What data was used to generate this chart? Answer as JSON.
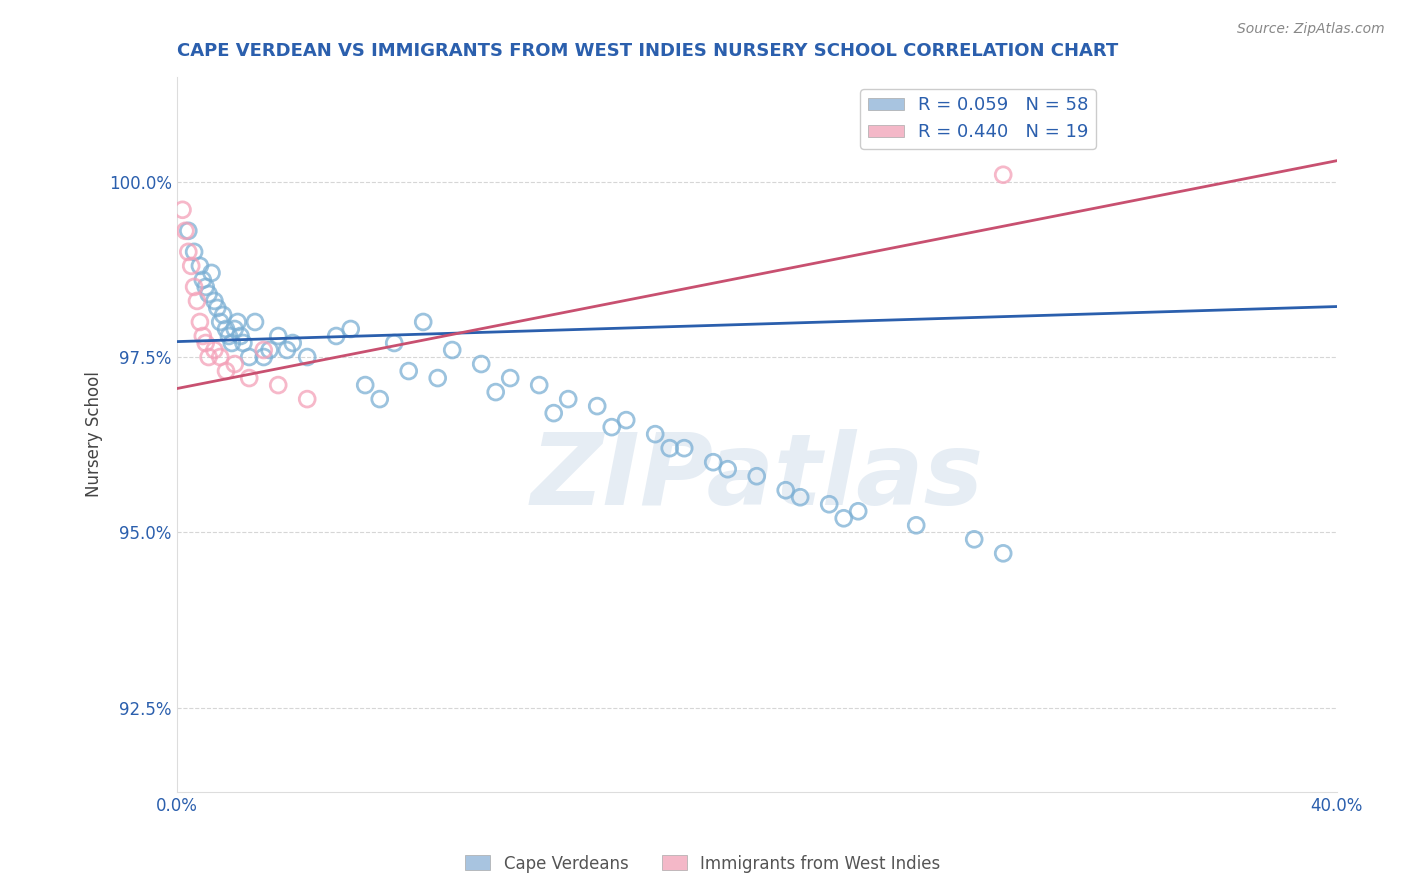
{
  "title": "CAPE VERDEAN VS IMMIGRANTS FROM WEST INDIES NURSERY SCHOOL CORRELATION CHART",
  "source": "Source: ZipAtlas.com",
  "ylabel": "Nursery School",
  "xlim": [
    0.0,
    40.0
  ],
  "ylim": [
    91.3,
    101.5
  ],
  "yticks": [
    92.5,
    95.0,
    97.5,
    100.0
  ],
  "xticks": [
    0.0,
    10.0,
    20.0,
    30.0,
    40.0
  ],
  "xtick_labels": [
    "0.0%",
    "",
    "",
    "",
    "40.0%"
  ],
  "ytick_labels": [
    "92.5%",
    "95.0%",
    "97.5%",
    "100.0%"
  ],
  "legend_blue_label": "R = 0.059   N = 58",
  "legend_pink_label": "R = 0.440   N = 19",
  "legend_blue_color": "#a8c4e0",
  "legend_pink_color": "#f4b8c8",
  "scatter_blue_x": [
    0.4,
    0.6,
    0.8,
    0.9,
    1.0,
    1.1,
    1.2,
    1.3,
    1.4,
    1.5,
    1.6,
    1.7,
    1.8,
    1.9,
    2.0,
    2.1,
    2.2,
    2.3,
    2.5,
    2.7,
    3.0,
    3.2,
    3.5,
    3.8,
    4.0,
    4.5,
    5.5,
    6.0,
    7.5,
    8.5,
    9.5,
    10.5,
    11.5,
    12.5,
    13.5,
    14.5,
    15.5,
    16.5,
    17.5,
    18.5,
    20.0,
    21.0,
    22.5,
    23.5,
    25.5,
    27.5,
    8.0,
    9.0,
    11.0,
    13.0,
    15.0,
    17.0,
    6.5,
    7.0,
    19.0,
    21.5,
    23.0,
    28.5
  ],
  "scatter_blue_y": [
    99.3,
    99.0,
    98.8,
    98.6,
    98.5,
    98.4,
    98.7,
    98.3,
    98.2,
    98.0,
    98.1,
    97.9,
    97.8,
    97.7,
    97.9,
    98.0,
    97.8,
    97.7,
    97.5,
    98.0,
    97.5,
    97.6,
    97.8,
    97.6,
    97.7,
    97.5,
    97.8,
    97.9,
    97.7,
    98.0,
    97.6,
    97.4,
    97.2,
    97.1,
    96.9,
    96.8,
    96.6,
    96.4,
    96.2,
    96.0,
    95.8,
    95.6,
    95.4,
    95.3,
    95.1,
    94.9,
    97.3,
    97.2,
    97.0,
    96.7,
    96.5,
    96.2,
    97.1,
    96.9,
    95.9,
    95.5,
    95.2,
    94.7
  ],
  "scatter_pink_x": [
    0.2,
    0.3,
    0.4,
    0.5,
    0.6,
    0.7,
    0.8,
    0.9,
    1.0,
    1.1,
    1.3,
    1.5,
    1.7,
    2.0,
    2.5,
    3.0,
    3.5,
    4.5,
    28.5
  ],
  "scatter_pink_y": [
    99.6,
    99.3,
    99.0,
    98.8,
    98.5,
    98.3,
    98.0,
    97.8,
    97.7,
    97.5,
    97.6,
    97.5,
    97.3,
    97.4,
    97.2,
    97.6,
    97.1,
    96.9,
    100.1
  ],
  "blue_line_x": [
    0.0,
    40.0
  ],
  "blue_line_y": [
    97.72,
    98.22
  ],
  "pink_line_x": [
    0.0,
    40.0
  ],
  "pink_line_y": [
    97.05,
    100.3
  ],
  "watermark": "ZIPatlas",
  "watermark_color": "#c8d8e8",
  "scatter_blue_color": "#7bafd4",
  "scatter_pink_color": "#f4a0b8",
  "trend_blue_color": "#2b5fad",
  "trend_pink_color": "#c85070",
  "background_color": "#ffffff",
  "title_color": "#2b5fad",
  "title_fontsize": 13,
  "axis_label_color": "#444444",
  "tick_color": "#2b5fad",
  "grid_color": "#bbbbbb",
  "grid_style": "--",
  "grid_alpha": 0.6
}
